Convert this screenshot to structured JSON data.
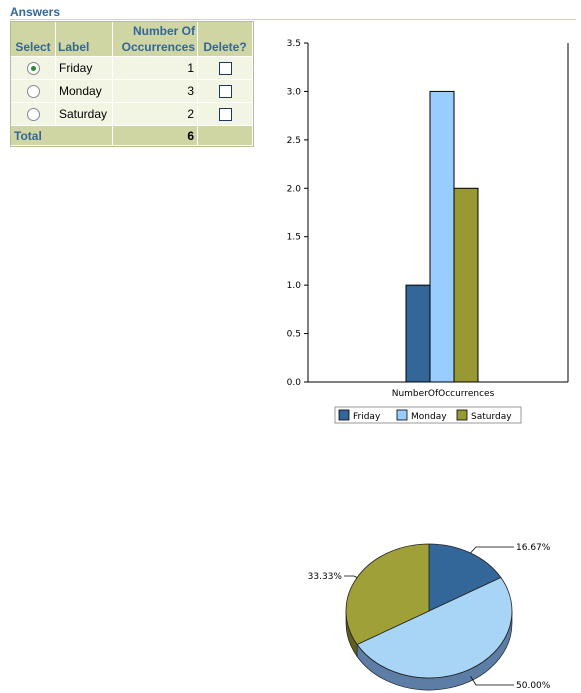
{
  "section": {
    "title": "Answers"
  },
  "table": {
    "headers": {
      "select": "Select",
      "label": "Label",
      "number_line1": "Number Of",
      "number_line2": "Occurrences",
      "delete": "Delete?"
    },
    "rows": [
      {
        "label": "Friday",
        "count": "1",
        "selected": true
      },
      {
        "label": "Monday",
        "count": "3",
        "selected": false
      },
      {
        "label": "Saturday",
        "count": "2",
        "selected": false
      }
    ],
    "total_label": "Total",
    "total_value": "6"
  },
  "colors": {
    "friday": "#336699",
    "monday": "#99ccff",
    "saturday": "#999933"
  },
  "chart_data": [
    {
      "type": "bar",
      "categories": [
        "NumberOfOccurrences"
      ],
      "series": [
        {
          "name": "Friday",
          "values": [
            1
          ]
        },
        {
          "name": "Monday",
          "values": [
            3
          ]
        },
        {
          "name": "Saturday",
          "values": [
            2
          ]
        }
      ],
      "yticks": [
        "0.0",
        "0.5",
        "1.0",
        "1.5",
        "2.0",
        "2.5",
        "3.0",
        "3.5"
      ],
      "ylim": [
        0,
        3.5
      ],
      "legend": "bottom",
      "grid": false
    },
    {
      "type": "pie",
      "slices": [
        {
          "name": "Friday",
          "value": 1,
          "label": "16.67%"
        },
        {
          "name": "Monday",
          "value": 3,
          "label": "50.00%"
        },
        {
          "name": "Saturday",
          "value": 2,
          "label": "33.33%"
        }
      ]
    }
  ]
}
